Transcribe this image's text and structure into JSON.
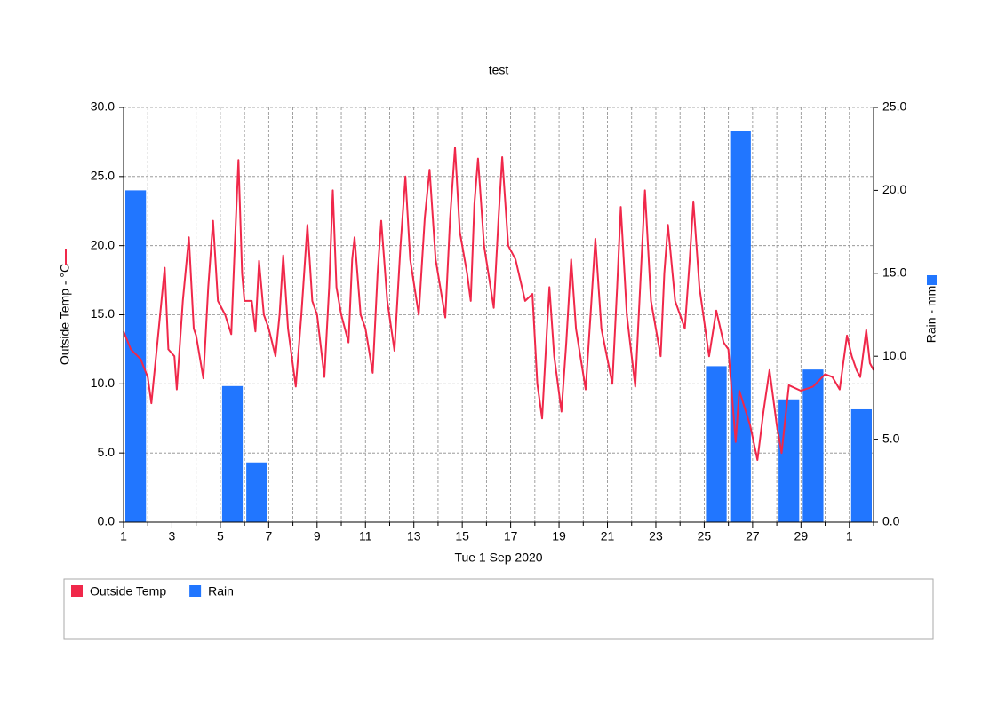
{
  "chart_data": {
    "type": "line-bar",
    "title": "test",
    "x_label": "Tue 1 Sep 2020",
    "y_label": "Outside Temp - °C",
    "y2_label": "Rain - mm",
    "xlim": [
      0,
      31
    ],
    "xticks": [
      {
        "value": 0,
        "label": "1"
      },
      {
        "value": 2,
        "label": "3"
      },
      {
        "value": 4,
        "label": "5"
      },
      {
        "value": 6,
        "label": "7"
      },
      {
        "value": 8,
        "label": "9"
      },
      {
        "value": 10,
        "label": "11"
      },
      {
        "value": 12,
        "label": "13"
      },
      {
        "value": 14,
        "label": "15"
      },
      {
        "value": 16,
        "label": "17"
      },
      {
        "value": 18,
        "label": "19"
      },
      {
        "value": 20,
        "label": "21"
      },
      {
        "value": 22,
        "label": "23"
      },
      {
        "value": 24,
        "label": "25"
      },
      {
        "value": 26,
        "label": "27"
      },
      {
        "value": 28,
        "label": "29"
      },
      {
        "value": 30,
        "label": "1"
      }
    ],
    "x_minor_ticks": [
      1,
      3,
      5,
      7,
      9,
      11,
      13,
      15,
      17,
      19,
      21,
      23,
      25,
      27,
      29,
      31
    ],
    "ylim": [
      0,
      30
    ],
    "yticks": [
      {
        "value": 0,
        "label": "0.0"
      },
      {
        "value": 5,
        "label": "5.0"
      },
      {
        "value": 10,
        "label": "10.0"
      },
      {
        "value": 15,
        "label": "15.0"
      },
      {
        "value": 20,
        "label": "20.0"
      },
      {
        "value": 25,
        "label": "25.0"
      },
      {
        "value": 30,
        "label": "30.0"
      }
    ],
    "y2lim": [
      0,
      25
    ],
    "y2ticks": [
      {
        "value": 0,
        "label": "0.0"
      },
      {
        "value": 5,
        "label": "5.0"
      },
      {
        "value": 10,
        "label": "10.0"
      },
      {
        "value": 15,
        "label": "15.0"
      },
      {
        "value": 20,
        "label": "20.0"
      },
      {
        "value": 25,
        "label": "25.0"
      }
    ],
    "grid": true,
    "legend": "bottom",
    "series": [
      {
        "name": "Outside Temp",
        "type": "line",
        "color": "#f0284a",
        "x": [
          0,
          0.3,
          0.7,
          1.0,
          1.15,
          1.4,
          1.7,
          1.85,
          2.1,
          2.2,
          2.45,
          2.7,
          2.9,
          3.0,
          3.3,
          3.5,
          3.7,
          3.9,
          4.2,
          4.45,
          4.6,
          4.75,
          4.9,
          5.0,
          5.3,
          5.45,
          5.6,
          5.8,
          6.0,
          6.28,
          6.45,
          6.6,
          6.8,
          7.12,
          7.35,
          7.6,
          7.8,
          8.0,
          8.3,
          8.5,
          8.65,
          8.8,
          9.0,
          9.3,
          9.45,
          9.55,
          9.8,
          10.0,
          10.3,
          10.5,
          10.65,
          10.9,
          11.2,
          11.45,
          11.65,
          11.85,
          12.2,
          12.45,
          12.65,
          12.9,
          13.3,
          13.5,
          13.7,
          13.9,
          14.2,
          14.35,
          14.5,
          14.65,
          14.9,
          15.3,
          15.5,
          15.65,
          15.9,
          16.2,
          16.6,
          16.9,
          17.1,
          17.3,
          17.5,
          17.6,
          17.8,
          18.1,
          18.3,
          18.5,
          18.7,
          19.1,
          19.3,
          19.5,
          19.75,
          20.2,
          20.4,
          20.55,
          20.8,
          21.15,
          21.35,
          21.55,
          21.8,
          22.2,
          22.35,
          22.5,
          22.8,
          23.2,
          23.4,
          23.55,
          23.8,
          24.2,
          24.5,
          24.8,
          25.0,
          25.3,
          25.45,
          25.9,
          26.2,
          26.45,
          26.7,
          27.0,
          27.2,
          27.5,
          28.0,
          28.5,
          29.0,
          29.3,
          29.6,
          29.9,
          30.1,
          30.3,
          30.45,
          30.7,
          30.85,
          31.0
        ],
        "values": [
          13.8,
          12.5,
          11.8,
          10.5,
          8.6,
          13,
          18.4,
          12.5,
          12,
          9.6,
          16,
          20.6,
          14,
          13.5,
          10.4,
          17,
          21.8,
          16,
          15,
          13.6,
          20,
          26.2,
          18,
          16,
          16,
          13.8,
          18.9,
          15,
          14,
          12,
          15,
          19.3,
          14,
          9.8,
          15,
          21.5,
          16,
          15,
          10.5,
          17,
          24,
          17,
          15,
          13,
          19,
          20.6,
          15,
          14,
          10.8,
          18,
          21.8,
          16,
          12.4,
          20,
          25,
          19,
          15,
          22,
          25.5,
          19,
          14.8,
          22,
          27.1,
          21,
          18,
          16,
          23,
          26.3,
          20,
          15.5,
          22,
          26.4,
          20,
          19,
          16,
          16.5,
          10,
          7.5,
          14,
          17,
          12,
          8,
          13,
          19,
          14,
          9.6,
          15,
          20.5,
          14,
          10,
          17,
          22.8,
          15,
          9.8,
          17,
          24,
          16,
          12,
          18,
          21.5,
          16,
          14,
          19,
          23.2,
          17,
          12,
          15.3,
          13,
          12.5,
          5.8,
          9.5,
          7,
          4.5,
          8,
          11,
          7,
          5,
          9.9,
          9.5,
          9.8,
          10.7,
          10.5,
          9.6,
          13.5,
          12,
          11,
          10.5,
          13.9,
          11.5,
          11
        ]
      },
      {
        "name": "Rain",
        "type": "bar",
        "axis": "y2",
        "color": "#2176ff",
        "x": [
          0,
          4,
          5,
          24,
          25,
          27,
          28,
          30
        ],
        "values": [
          20.0,
          8.2,
          3.6,
          9.4,
          23.6,
          7.4,
          9.2,
          6.8
        ]
      }
    ]
  }
}
